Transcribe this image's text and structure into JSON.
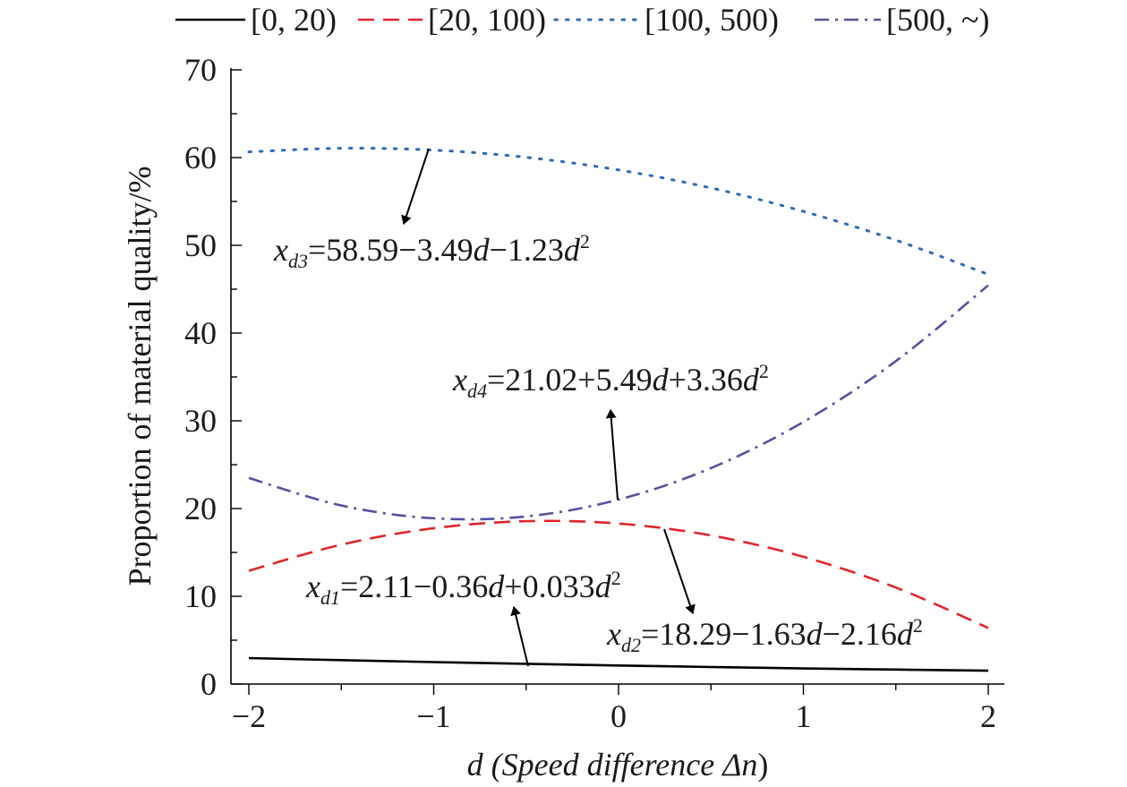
{
  "chart_data": {
    "type": "line",
    "title": "",
    "xlabel_var": "d",
    "xlabel_rest": " (Speed difference ",
    "xlabel_delta": "Δn",
    "xlabel_close": ")",
    "ylabel": "Proportion of material quality/%",
    "xlim": [
      -2,
      2
    ],
    "ylim": [
      0,
      70
    ],
    "x_ticks": [
      -2,
      -1,
      0,
      1,
      2
    ],
    "x_tick_labels": [
      "−2",
      "−1",
      "0",
      "1",
      "2"
    ],
    "y_ticks": [
      0,
      10,
      20,
      30,
      40,
      50,
      60,
      70
    ],
    "y_tick_labels": [
      "0",
      "10",
      "20",
      "30",
      "40",
      "50",
      "60",
      "70"
    ],
    "legend_position": "top",
    "grid": false,
    "series": [
      {
        "name": "[0, 20)",
        "color": "#000000",
        "style": "solid",
        "x": [
          -2,
          -1.5,
          -1,
          -0.5,
          0,
          0.5,
          1,
          1.5,
          2
        ],
        "y": [
          2.96,
          2.72,
          2.5,
          2.3,
          2.11,
          1.94,
          1.78,
          1.65,
          1.52
        ]
      },
      {
        "name": "[20, 100)",
        "color": "#e0262b",
        "style": "dashed",
        "x": [
          -2,
          -1.5,
          -1,
          -0.5,
          0,
          0.5,
          1,
          1.5,
          2
        ],
        "y": [
          12.91,
          15.89,
          17.76,
          18.56,
          18.29,
          16.94,
          14.5,
          11.0,
          6.39
        ]
      },
      {
        "name": "[100, 500)",
        "color": "#2f6bb5",
        "style": "dotted",
        "x": [
          -2,
          -1.5,
          -1,
          -0.5,
          0,
          0.5,
          1,
          1.5,
          2
        ],
        "y": [
          60.65,
          61.06,
          60.85,
          60.03,
          58.59,
          56.54,
          53.87,
          50.59,
          46.69
        ]
      },
      {
        "name": "[500, ~)",
        "color": "#5452a0",
        "style": "dashdot",
        "x": [
          -2,
          -1.5,
          -1,
          -0.5,
          0,
          0.5,
          1,
          1.5,
          2
        ],
        "y": [
          23.48,
          20.35,
          18.89,
          19.1,
          21.02,
          24.61,
          29.87,
          36.8,
          45.44
        ]
      }
    ],
    "annotations": [
      {
        "var": "x",
        "sub": "d3",
        "text": "=58.59−3.49",
        "v1": "d",
        "text2": "−1.23",
        "v2": "d",
        "sup": "2"
      },
      {
        "var": "x",
        "sub": "d4",
        "text": "=21.02+5.49",
        "v1": "d",
        "text2": "+3.36",
        "v2": "d",
        "sup": "2"
      },
      {
        "var": "x",
        "sub": "d1",
        "text": "=2.11−0.36",
        "v1": "d",
        "text2": "+0.033",
        "v2": "d",
        "sup": "2"
      },
      {
        "var": "x",
        "sub": "d2",
        "text": "=18.29−1.63",
        "v1": "d",
        "text2": "−2.16",
        "v2": "d",
        "sup": "2"
      }
    ]
  }
}
